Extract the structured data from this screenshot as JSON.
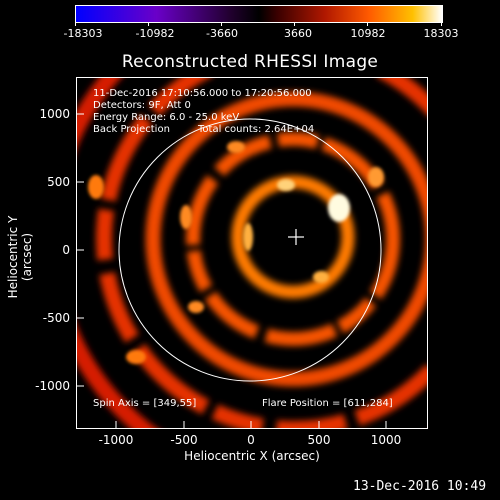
{
  "colorbar": {
    "tick_labels": [
      "-18303",
      "-10982",
      "-3660",
      "3660",
      "10982",
      "18303"
    ],
    "colors": [
      "#0000ff",
      "#7f00b0",
      "#000000",
      "#a01000",
      "#ff6a00",
      "#ffffff"
    ]
  },
  "title": "Reconstructed RHESSI Image",
  "header": {
    "time_range": "11-Dec-2016 17:10:56.000 to 17:20:56.000",
    "detectors": "Detectors: 9F, Att 0",
    "energy_range": "Energy Range: 6.0 - 25.0 keV",
    "method": "Back Projection",
    "total_counts": "Total counts: 2.64E+04"
  },
  "axes": {
    "xlabel": "Heliocentric X (arcsec)",
    "ylabel": "Heliocentric Y (arcsec)",
    "xticks": [
      "-1000",
      "-500",
      "0",
      "500",
      "1000"
    ],
    "yticks": [
      "1000",
      "500",
      "0",
      "-500",
      "-1000"
    ],
    "xlim": [
      -1300,
      1300
    ],
    "ylim": [
      -1300,
      1300
    ]
  },
  "annotations": {
    "spin_axis": "Spin Axis = [349,55]",
    "flare_position": "Flare Position = [611,284]"
  },
  "solar_disk_radius_arcsec": 975,
  "image_center_marker": {
    "x": 349,
    "y": 104
  },
  "footer_date": "13-Dec-2016 10:49"
}
